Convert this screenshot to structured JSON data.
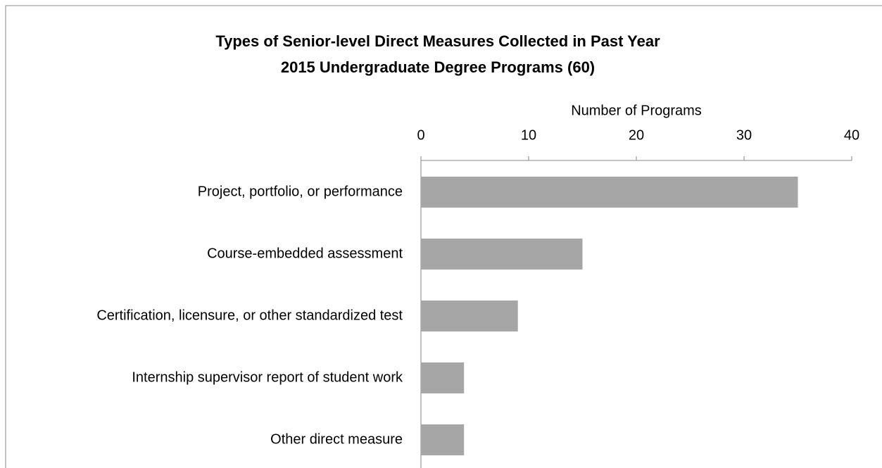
{
  "chart_data": {
    "type": "hbar",
    "title": "Types of Senior-level Direct Measures Collected in Past Year",
    "subtitle": "2015 Undergraduate Degree Programs (60)",
    "x_label": "Number of Programs",
    "categories": [
      "Project, portfolio, or performance",
      "Course-embedded assessment",
      "Certification, licensure, or other standardized test",
      "Internship supervisor report of student work",
      "Other direct measure"
    ],
    "values": [
      35,
      15,
      9,
      4,
      4
    ],
    "color": "#a6a6a6",
    "xlim": [
      0,
      40
    ],
    "xticks": [
      0,
      10,
      20,
      30,
      40
    ]
  }
}
